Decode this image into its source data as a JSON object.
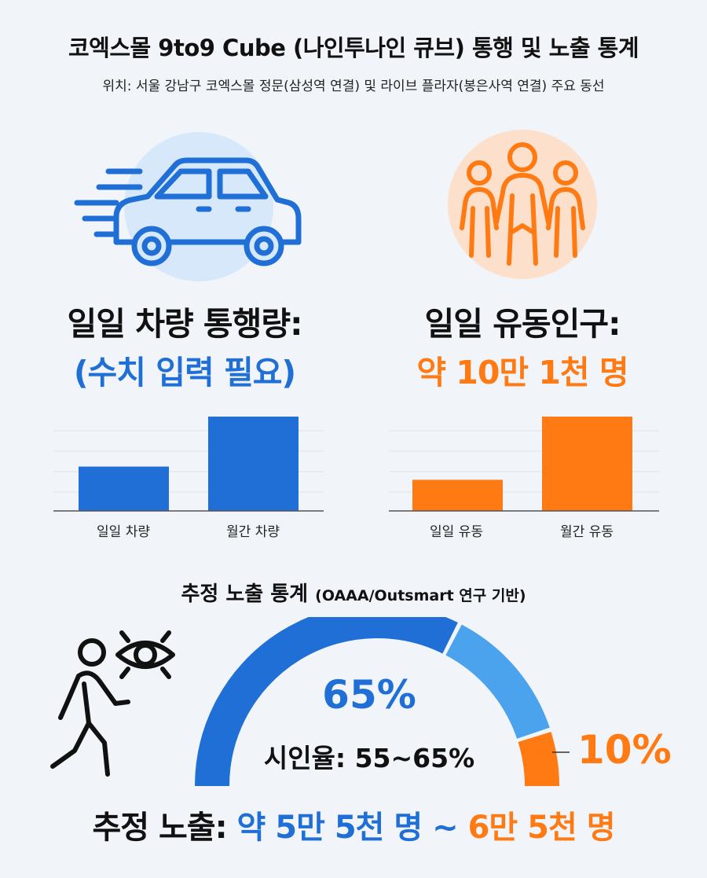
{
  "header": {
    "title": "코엑스몰 9to9 Cube (나인투나인 큐브) 통행 및 노출 통계",
    "subtitle": "위치: 서울 강남구 코엑스몰 정문(삼성역 연결) 및 라이브 플라자(봉은사역 연결) 주요 동선"
  },
  "vehicle": {
    "label": "일일 차량 통행량:",
    "value": "(수치 입력 필요)",
    "icon": "car-icon",
    "accent": "#1f6fd6"
  },
  "pedestrian": {
    "label": "일일 유동인구:",
    "value": "약 10만 1천 명",
    "icon": "people-icon",
    "accent": "#ff7a12"
  },
  "chart_data": [
    {
      "type": "bar",
      "categories": [
        "일일 차량",
        "월간 차량"
      ],
      "values": [
        0.47,
        1.0
      ],
      "ylim": [
        0,
        1.0
      ],
      "grid": true,
      "color": "#1f6fd6"
    },
    {
      "type": "bar",
      "categories": [
        "일일 유동",
        "월간 유동"
      ],
      "values": [
        0.33,
        1.0
      ],
      "ylim": [
        0,
        1.0
      ],
      "grid": true,
      "color": "#ff7a12"
    },
    {
      "type": "pie",
      "categories": [
        "",
        "",
        ""
      ],
      "values": [
        65,
        25,
        10
      ],
      "colors": [
        "#1f6fd6",
        "#4aa3ec",
        "#ff7a12"
      ],
      "style": "semicircle-gauge"
    }
  ],
  "exposure": {
    "section_title": "추정 노출 통계",
    "source": "(OAAA/Outsmart 연구 기반)",
    "main_pct": "65%",
    "range_text": "시인율: 55~65%",
    "side_pct": "10%",
    "icon": "walking-person-eye-icon"
  },
  "footer": {
    "label": "추정 노출:",
    "value_blue": "약 5만 5천 명 ~",
    "value_orange": "6만 5천 명"
  }
}
